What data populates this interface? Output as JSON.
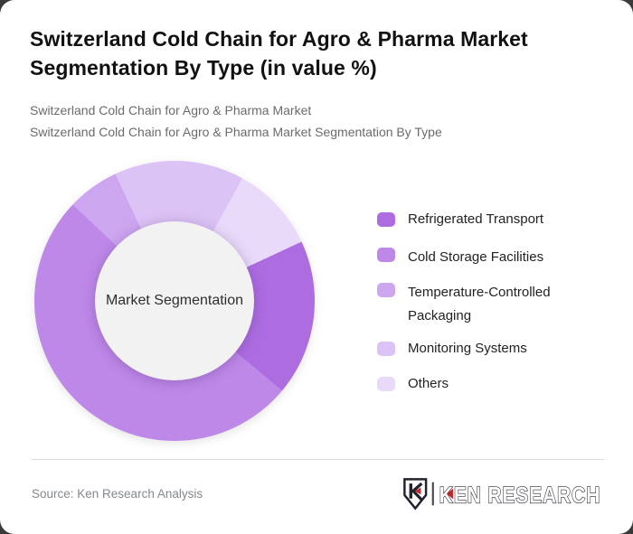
{
  "page": {
    "backdrop_color": "#3a3a3a",
    "card_color": "#ffffff"
  },
  "header": {
    "title": "Switzerland Cold Chain for Agro & Pharma Market Segmentation By Type (in value %)",
    "subtitle_line1": "Switzerland Cold Chain for Agro & Pharma Market",
    "subtitle_line2": "Switzerland Cold Chain for Agro & Pharma Market Segmentation By Type"
  },
  "chart_data": {
    "type": "pie",
    "variant": "donut",
    "title": "Switzerland Cold Chain for Agro & Pharma Market Segmentation By Type (in value %)",
    "center_label": "Market Segmentation",
    "units": "value %",
    "start_angle_deg": 65,
    "direction": "clockwise",
    "legend_position": "right",
    "values_shown_on_chart": false,
    "hole_color": "#f2f2f2",
    "series": [
      {
        "name": "Refrigerated Transport",
        "value": 18,
        "color": "#ad6de1"
      },
      {
        "name": "Cold Storage Facilities",
        "value": 51,
        "color": "#be88e8"
      },
      {
        "name": "Temperature-Controlled Packaging",
        "value": 6,
        "color": "#cda6f0"
      },
      {
        "name": "Monitoring Systems",
        "value": 15,
        "color": "#dcc3f5"
      },
      {
        "name": "Others",
        "value": 10,
        "color": "#e9dafa"
      }
    ]
  },
  "footer": {
    "source": "Source: Ken Research Analysis",
    "logo_text": "KEN RESEARCH",
    "logo_accent_color": "#c0272d",
    "logo_outline_color": "#23232e"
  }
}
